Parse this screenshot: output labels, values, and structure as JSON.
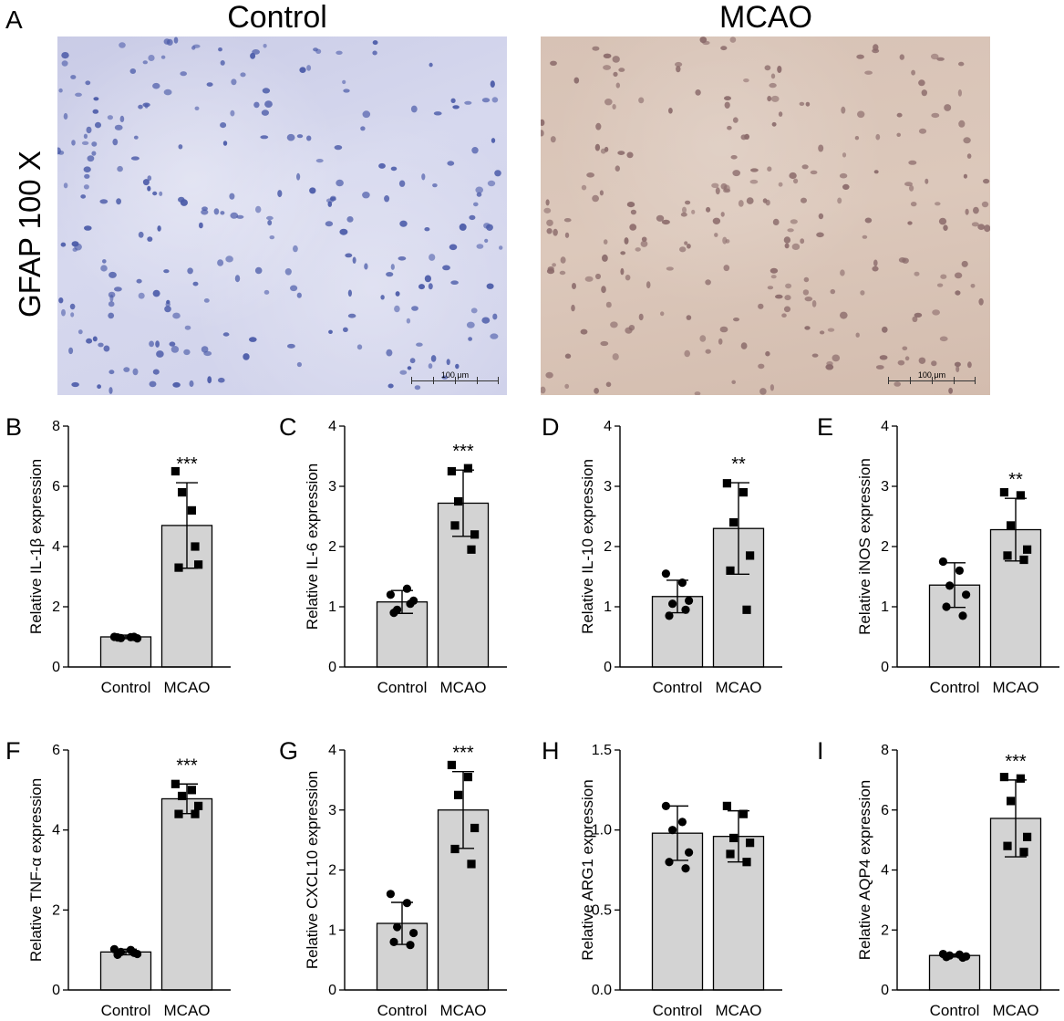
{
  "figure": {
    "panel_a": {
      "letter": "A",
      "titles": [
        "Control",
        "MCAO"
      ],
      "row_label": "GFAP  100 X",
      "scale_bar": "100 μm",
      "stains": {
        "control_color": "#cfd1ea",
        "mcao_color": "#d8c4b7",
        "nuclei_control": "#4a5aa8",
        "nuclei_mcao": "#8a6a6a"
      }
    }
  },
  "chart_data": [
    {
      "letter": "B",
      "type": "bar",
      "categories": [
        "Control",
        "MCAO"
      ],
      "ylabel": "Relative IL-1β expression",
      "ylim": [
        0,
        8
      ],
      "yticks": [
        0,
        2,
        4,
        6,
        8
      ],
      "tickdec": 0,
      "means": [
        1.0,
        4.7
      ],
      "sd": [
        0.06,
        1.42
      ],
      "significance": "***",
      "points": [
        [
          1.0,
          0.99,
          0.96,
          0.95,
          0.98,
          1.0
        ],
        [
          6.5,
          5.2,
          5.8,
          3.4,
          3.3,
          4.0
        ]
      ],
      "markers": [
        "circle",
        "square"
      ]
    },
    {
      "letter": "C",
      "type": "bar",
      "categories": [
        "Control",
        "MCAO"
      ],
      "ylabel": "Relative IL-6 expression",
      "ylim": [
        0,
        4
      ],
      "yticks": [
        0,
        1,
        2,
        3,
        4
      ],
      "tickdec": 0,
      "means": [
        1.08,
        2.72
      ],
      "sd": [
        0.19,
        0.55
      ],
      "significance": "***",
      "points": [
        [
          1.2,
          1.3,
          0.95,
          1.1,
          0.9,
          1.05
        ],
        [
          3.25,
          3.3,
          2.75,
          2.2,
          2.35,
          1.95
        ]
      ],
      "markers": [
        "circle",
        "square"
      ]
    },
    {
      "letter": "D",
      "type": "bar",
      "categories": [
        "Control",
        "MCAO"
      ],
      "ylabel": "Relative IL-10 expression",
      "ylim": [
        0,
        4
      ],
      "yticks": [
        0,
        1,
        2,
        3,
        4
      ],
      "tickdec": 0,
      "means": [
        1.17,
        2.3
      ],
      "sd": [
        0.27,
        0.76
      ],
      "significance": "**",
      "points": [
        [
          1.55,
          1.4,
          1.05,
          1.1,
          0.85,
          0.95
        ],
        [
          3.05,
          2.9,
          2.4,
          1.85,
          1.6,
          0.95
        ]
      ],
      "markers": [
        "circle",
        "square"
      ]
    },
    {
      "letter": "E",
      "type": "bar",
      "categories": [
        "Control",
        "MCAO"
      ],
      "ylabel": "Relative iNOS expression",
      "ylim": [
        0,
        4
      ],
      "yticks": [
        0,
        1,
        2,
        3,
        4
      ],
      "tickdec": 0,
      "means": [
        1.36,
        2.28
      ],
      "sd": [
        0.37,
        0.52
      ],
      "significance": "**",
      "points": [
        [
          1.75,
          1.6,
          1.35,
          1.2,
          1.0,
          0.85
        ],
        [
          2.9,
          2.85,
          2.35,
          1.95,
          1.85,
          1.78
        ]
      ],
      "markers": [
        "circle",
        "square"
      ]
    },
    {
      "letter": "F",
      "type": "bar",
      "categories": [
        "Control",
        "MCAO"
      ],
      "ylabel": "Relative TNF-α expression",
      "ylim": [
        0,
        6
      ],
      "yticks": [
        0,
        2,
        4,
        6
      ],
      "tickdec": 0,
      "means": [
        0.95,
        4.78
      ],
      "sd": [
        0.07,
        0.37
      ],
      "significance": "***",
      "points": [
        [
          1.02,
          1.0,
          0.95,
          0.9,
          0.88,
          0.93
        ],
        [
          5.15,
          5.0,
          4.85,
          4.6,
          4.4,
          4.4
        ]
      ],
      "markers": [
        "circle",
        "square"
      ]
    },
    {
      "letter": "G",
      "type": "bar",
      "categories": [
        "Control",
        "MCAO"
      ],
      "ylabel": "Relative CXCL10 expression",
      "ylim": [
        0,
        4
      ],
      "yticks": [
        0,
        1,
        2,
        3,
        4
      ],
      "tickdec": 0,
      "means": [
        1.11,
        3.0
      ],
      "sd": [
        0.35,
        0.64
      ],
      "significance": "***",
      "points": [
        [
          1.6,
          1.45,
          1.05,
          0.95,
          0.8,
          0.75
        ],
        [
          3.75,
          3.55,
          3.25,
          2.7,
          2.35,
          2.1
        ]
      ],
      "markers": [
        "circle",
        "square"
      ]
    },
    {
      "letter": "H",
      "type": "bar",
      "categories": [
        "Control",
        "MCAO"
      ],
      "ylabel": "Relative ARG1 expression",
      "ylim": [
        0,
        1.5
      ],
      "yticks": [
        0,
        0.5,
        1.0,
        1.5
      ],
      "tickdec": 1,
      "means": [
        0.98,
        0.96
      ],
      "sd": [
        0.17,
        0.16
      ],
      "significance": "",
      "points": [
        [
          1.15,
          1.05,
          1.0,
          0.86,
          0.8,
          0.76
        ],
        [
          1.15,
          1.1,
          0.95,
          0.92,
          0.85,
          0.8
        ]
      ],
      "markers": [
        "circle",
        "square"
      ]
    },
    {
      "letter": "I",
      "type": "bar",
      "categories": [
        "Control",
        "MCAO"
      ],
      "ylabel": "Relative AQP4 expression",
      "ylim": [
        0,
        8
      ],
      "yticks": [
        0,
        2,
        4,
        6,
        8
      ],
      "tickdec": 0,
      "means": [
        1.15,
        5.72
      ],
      "sd": [
        0.05,
        1.28
      ],
      "significance": "***",
      "points": [
        [
          1.2,
          1.18,
          1.15,
          1.12,
          1.1,
          1.08
        ],
        [
          7.1,
          7.05,
          6.3,
          5.1,
          4.8,
          4.6
        ]
      ],
      "markers": [
        "circle",
        "square"
      ]
    }
  ]
}
